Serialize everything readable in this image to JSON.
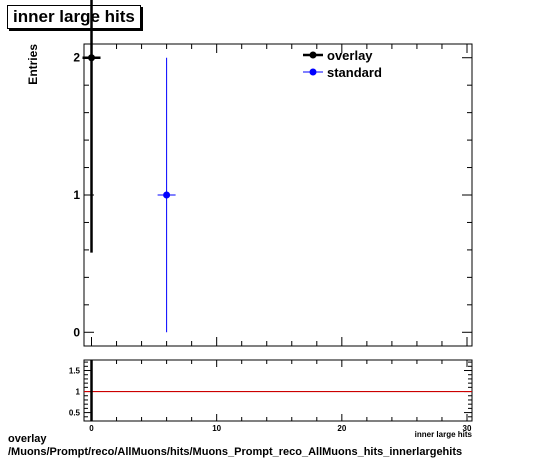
{
  "title": "inner large hits",
  "footer": {
    "line1": "overlay",
    "line2": "/Muons/Prompt/reco/AllMuons/hits/Muons_Prompt_reco_AllMuons_hits_innerlargehits"
  },
  "colors": {
    "overlay": "#000000",
    "standard": "#0000ff",
    "ratio_line": "#cc0000"
  },
  "chart_data": [
    {
      "type": "scatter",
      "title": "inner large hits",
      "xlabel": "inner large hits",
      "ylabel": "Entries",
      "xlim": [
        -0.6,
        30.4
      ],
      "ylim": [
        -0.1,
        2.1
      ],
      "xticks": [
        0,
        10,
        20,
        30
      ],
      "yticks": [
        0,
        1,
        2
      ],
      "legend_position": "top-right",
      "series": [
        {
          "name": "overlay",
          "color": "#000000",
          "marker": "circle",
          "points": [
            {
              "x": 0,
              "y": 2,
              "yerr_low": 1.42,
              "yerr_high": 2.1
            }
          ]
        },
        {
          "name": "standard",
          "color": "#0000ff",
          "marker": "circle",
          "points": [
            {
              "x": 6,
              "y": 1,
              "yerr_low": 1,
              "yerr_high": 1
            }
          ]
        }
      ]
    },
    {
      "type": "line",
      "xlim": [
        -0.6,
        30.4
      ],
      "ylim": [
        0.3,
        1.75
      ],
      "xticks": [
        0,
        10,
        20,
        30
      ],
      "yticks": [
        0.5,
        1,
        1.5
      ],
      "reference_line": 1,
      "series": [
        {
          "color": "#000000",
          "points": [
            {
              "x": 0,
              "y_low": 0.3,
              "y_high": 1.75
            }
          ]
        }
      ]
    }
  ]
}
